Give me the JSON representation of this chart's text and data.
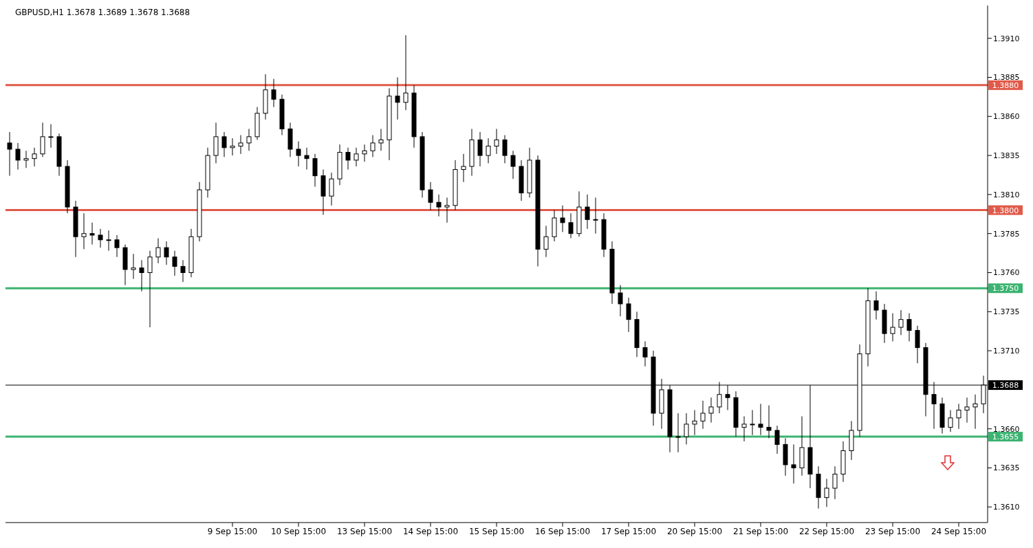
{
  "chart_data": {
    "type": "candlestick",
    "title": "GBPUSD,H1  1.3678 1.3689 1.3678 1.3688",
    "categories": [
      null,
      null,
      null,
      null,
      null,
      null,
      null,
      null,
      null,
      null,
      null,
      null,
      null,
      null,
      null,
      null,
      null,
      null,
      null,
      null,
      null,
      null,
      null,
      null,
      null,
      null,
      null,
      "9 Sep 15:00",
      null,
      null,
      null,
      null,
      null,
      null,
      null,
      "10 Sep 15:00",
      null,
      null,
      null,
      null,
      null,
      null,
      null,
      "13 Sep 15:00",
      null,
      null,
      null,
      null,
      null,
      null,
      null,
      "14 Sep 15:00",
      null,
      null,
      null,
      null,
      null,
      null,
      null,
      "15 Sep 15:00",
      null,
      null,
      null,
      null,
      null,
      null,
      null,
      "16 Sep 15:00",
      null,
      null,
      null,
      null,
      null,
      null,
      null,
      "17 Sep 15:00",
      null,
      null,
      null,
      null,
      null,
      null,
      null,
      "20 Sep 15:00",
      null,
      null,
      null,
      null,
      null,
      null,
      null,
      "21 Sep 15:00",
      null,
      null,
      null,
      null,
      null,
      null,
      null,
      "22 Sep 15:00",
      null,
      null,
      null,
      null,
      null,
      null,
      null,
      "23 Sep 15:00",
      null,
      null,
      null,
      null,
      null,
      null,
      null,
      "24 Sep 15:00",
      null,
      null,
      null
    ],
    "ohlc": [
      [
        1.3843,
        1.385,
        1.3822,
        1.3839
      ],
      [
        1.3839,
        1.3843,
        1.3826,
        1.3832
      ],
      [
        1.3832,
        1.3838,
        1.3827,
        1.3833
      ],
      [
        1.3833,
        1.384,
        1.3828,
        1.3836
      ],
      [
        1.3836,
        1.3856,
        1.3834,
        1.3847
      ],
      [
        1.3847,
        1.3855,
        1.384,
        1.3847
      ],
      [
        1.3847,
        1.3849,
        1.3822,
        1.3828
      ],
      [
        1.3828,
        1.3832,
        1.3798,
        1.3802
      ],
      [
        1.3802,
        1.3806,
        1.377,
        1.3783
      ],
      [
        1.3783,
        1.3798,
        1.3775,
        1.3785
      ],
      [
        1.3785,
        1.3792,
        1.3778,
        1.3784
      ],
      [
        1.3784,
        1.3788,
        1.3776,
        1.3781
      ],
      [
        1.3781,
        1.3787,
        1.3774,
        1.3781
      ],
      [
        1.3781,
        1.3784,
        1.377,
        1.3776
      ],
      [
        1.3776,
        1.3778,
        1.3752,
        1.3762
      ],
      [
        1.3762,
        1.3772,
        1.3756,
        1.3763
      ],
      [
        1.3763,
        1.3768,
        1.3748,
        1.376
      ],
      [
        1.376,
        1.3774,
        1.3725,
        1.377
      ],
      [
        1.377,
        1.3782,
        1.3766,
        1.3776
      ],
      [
        1.3776,
        1.378,
        1.3765,
        1.377
      ],
      [
        1.377,
        1.3774,
        1.3758,
        1.3764
      ],
      [
        1.3764,
        1.3768,
        1.3754,
        1.376
      ],
      [
        1.376,
        1.3788,
        1.3757,
        1.3783
      ],
      [
        1.3783,
        1.3818,
        1.378,
        1.3813
      ],
      [
        1.3813,
        1.384,
        1.3808,
        1.3835
      ],
      [
        1.3835,
        1.3856,
        1.383,
        1.3847
      ],
      [
        1.3847,
        1.385,
        1.3834,
        1.384
      ],
      [
        1.384,
        1.3846,
        1.3835,
        1.3841
      ],
      [
        1.3841,
        1.3848,
        1.3836,
        1.3843
      ],
      [
        1.3843,
        1.3852,
        1.3838,
        1.3847
      ],
      [
        1.3847,
        1.3866,
        1.3845,
        1.3862
      ],
      [
        1.3862,
        1.3887,
        1.3858,
        1.3877
      ],
      [
        1.3877,
        1.3884,
        1.3866,
        1.3871
      ],
      [
        1.3871,
        1.3874,
        1.3848,
        1.3852
      ],
      [
        1.3852,
        1.3856,
        1.3834,
        1.3839
      ],
      [
        1.3839,
        1.3844,
        1.3828,
        1.3835
      ],
      [
        1.3835,
        1.384,
        1.3826,
        1.3833
      ],
      [
        1.3833,
        1.3836,
        1.3815,
        1.3822
      ],
      [
        1.3822,
        1.3826,
        1.3797,
        1.3809
      ],
      [
        1.3809,
        1.3824,
        1.3803,
        1.382
      ],
      [
        1.382,
        1.3842,
        1.3816,
        1.3837
      ],
      [
        1.3837,
        1.384,
        1.3826,
        1.3832
      ],
      [
        1.3832,
        1.384,
        1.3828,
        1.3836
      ],
      [
        1.3836,
        1.3842,
        1.3831,
        1.3838
      ],
      [
        1.3838,
        1.3848,
        1.3834,
        1.3843
      ],
      [
        1.3843,
        1.3852,
        1.3838,
        1.3845
      ],
      [
        1.3845,
        1.3878,
        1.3832,
        1.3873
      ],
      [
        1.3873,
        1.3885,
        1.3858,
        1.3869
      ],
      [
        1.3869,
        1.3912,
        1.3864,
        1.3875
      ],
      [
        1.3875,
        1.388,
        1.384,
        1.3847
      ],
      [
        1.3847,
        1.385,
        1.3808,
        1.3813
      ],
      [
        1.3813,
        1.3818,
        1.38,
        1.3805
      ],
      [
        1.3805,
        1.381,
        1.3796,
        1.3802
      ],
      [
        1.3802,
        1.3808,
        1.3792,
        1.3803
      ],
      [
        1.3803,
        1.3832,
        1.38,
        1.3826
      ],
      [
        1.3826,
        1.3836,
        1.3818,
        1.3828
      ],
      [
        1.3828,
        1.3852,
        1.3822,
        1.3845
      ],
      [
        1.3845,
        1.385,
        1.3828,
        1.3835
      ],
      [
        1.3835,
        1.3846,
        1.383,
        1.3841
      ],
      [
        1.3841,
        1.3852,
        1.3836,
        1.3845
      ],
      [
        1.3845,
        1.3848,
        1.383,
        1.3835
      ],
      [
        1.3835,
        1.3838,
        1.382,
        1.3828
      ],
      [
        1.3828,
        1.3832,
        1.3806,
        1.3811
      ],
      [
        1.3811,
        1.384,
        1.3808,
        1.3832
      ],
      [
        1.3832,
        1.3835,
        1.3764,
        1.3775
      ],
      [
        1.3775,
        1.379,
        1.377,
        1.3783
      ],
      [
        1.3783,
        1.38,
        1.378,
        1.3795
      ],
      [
        1.3795,
        1.3803,
        1.3786,
        1.3792
      ],
      [
        1.3792,
        1.3798,
        1.3782,
        1.3785
      ],
      [
        1.3785,
        1.3812,
        1.3783,
        1.3802
      ],
      [
        1.3802,
        1.381,
        1.3788,
        1.3794
      ],
      [
        1.3794,
        1.3808,
        1.3785,
        1.3794
      ],
      [
        1.3794,
        1.3798,
        1.377,
        1.3775
      ],
      [
        1.3775,
        1.378,
        1.374,
        1.3747
      ],
      [
        1.3747,
        1.3752,
        1.3732,
        1.374
      ],
      [
        1.374,
        1.3744,
        1.3722,
        1.373
      ],
      [
        1.373,
        1.3735,
        1.3706,
        1.3712
      ],
      [
        1.3712,
        1.3716,
        1.37,
        1.3706
      ],
      [
        1.3706,
        1.371,
        1.3662,
        1.367
      ],
      [
        1.367,
        1.3692,
        1.366,
        1.3685
      ],
      [
        1.3685,
        1.3688,
        1.3645,
        1.3655
      ],
      [
        1.3655,
        1.367,
        1.3645,
        1.3655
      ],
      [
        1.3655,
        1.367,
        1.365,
        1.3663
      ],
      [
        1.3663,
        1.3672,
        1.3656,
        1.3665
      ],
      [
        1.3665,
        1.3678,
        1.366,
        1.367
      ],
      [
        1.367,
        1.368,
        1.3664,
        1.3674
      ],
      [
        1.3674,
        1.369,
        1.367,
        1.3682
      ],
      [
        1.3682,
        1.3688,
        1.3672,
        1.368
      ],
      [
        1.368,
        1.3684,
        1.3655,
        1.3661
      ],
      [
        1.3661,
        1.3668,
        1.3652,
        1.3663
      ],
      [
        1.3663,
        1.3672,
        1.3656,
        1.3663
      ],
      [
        1.3663,
        1.3676,
        1.3656,
        1.3661
      ],
      [
        1.3661,
        1.3675,
        1.3654,
        1.3659
      ],
      [
        1.3659,
        1.3662,
        1.3644,
        1.365
      ],
      [
        1.365,
        1.3654,
        1.363,
        1.3637
      ],
      [
        1.3637,
        1.365,
        1.3625,
        1.3635
      ],
      [
        1.3635,
        1.3668,
        1.363,
        1.3648
      ],
      [
        1.3648,
        1.3688,
        1.3622,
        1.3631
      ],
      [
        1.3631,
        1.3636,
        1.3609,
        1.3616
      ],
      [
        1.3616,
        1.3628,
        1.361,
        1.3622
      ],
      [
        1.3622,
        1.3636,
        1.3615,
        1.3631
      ],
      [
        1.3631,
        1.3652,
        1.3626,
        1.3646
      ],
      [
        1.3646,
        1.3665,
        1.364,
        1.3659
      ],
      [
        1.3659,
        1.3714,
        1.3655,
        1.3708
      ],
      [
        1.3708,
        1.375,
        1.37,
        1.3742
      ],
      [
        1.3742,
        1.3748,
        1.373,
        1.3736
      ],
      [
        1.3736,
        1.374,
        1.3715,
        1.3721
      ],
      [
        1.3721,
        1.3734,
        1.3716,
        1.3725
      ],
      [
        1.3725,
        1.3736,
        1.372,
        1.373
      ],
      [
        1.373,
        1.3734,
        1.3716,
        1.3723
      ],
      [
        1.3723,
        1.3726,
        1.3702,
        1.3712
      ],
      [
        1.3712,
        1.3715,
        1.3668,
        1.3682
      ],
      [
        1.3682,
        1.369,
        1.366,
        1.3676
      ],
      [
        1.3676,
        1.368,
        1.3657,
        1.3661
      ],
      [
        1.3661,
        1.3672,
        1.3658,
        1.3667
      ],
      [
        1.3667,
        1.3676,
        1.366,
        1.3672
      ],
      [
        1.3672,
        1.368,
        1.3664,
        1.3674
      ],
      [
        1.3674,
        1.3682,
        1.366,
        1.3676
      ],
      [
        1.3676,
        1.3694,
        1.367,
        1.3688
      ]
    ],
    "color": "#000000",
    "ylim": [
      1.36,
      1.3931
    ],
    "yticks": [
      {
        "value": 1.361,
        "label": "1.3610"
      },
      {
        "value": 1.3635,
        "label": "1.3635"
      },
      {
        "value": 1.366,
        "label": "1.3660"
      },
      {
        "value": 1.371,
        "label": "1.3710"
      },
      {
        "value": 1.3735,
        "label": "1.3735"
      },
      {
        "value": 1.376,
        "label": "1.3760"
      },
      {
        "value": 1.3785,
        "label": "1.3785"
      },
      {
        "value": 1.381,
        "label": "1.3810"
      },
      {
        "value": 1.3835,
        "label": "1.3835"
      },
      {
        "value": 1.386,
        "label": "1.3860"
      },
      {
        "value": 1.3885,
        "label": "1.3885"
      },
      {
        "value": 1.391,
        "label": "1.3910"
      }
    ],
    "ref_lines": [
      {
        "axis": "y",
        "value": 1.388,
        "label": "1.3880",
        "color": "#e05a4a"
      },
      {
        "axis": "y",
        "value": 1.38,
        "label": "1.3800",
        "color": "#e05a4a"
      },
      {
        "axis": "y",
        "value": 1.375,
        "label": "1.3750",
        "color": "#3cb371"
      },
      {
        "axis": "y",
        "value": 1.3655,
        "label": "1.3655",
        "color": "#3cb371"
      },
      {
        "axis": "y",
        "value": 1.3688,
        "label": "1.3688",
        "color": "#000000"
      }
    ],
    "legend": false
  }
}
